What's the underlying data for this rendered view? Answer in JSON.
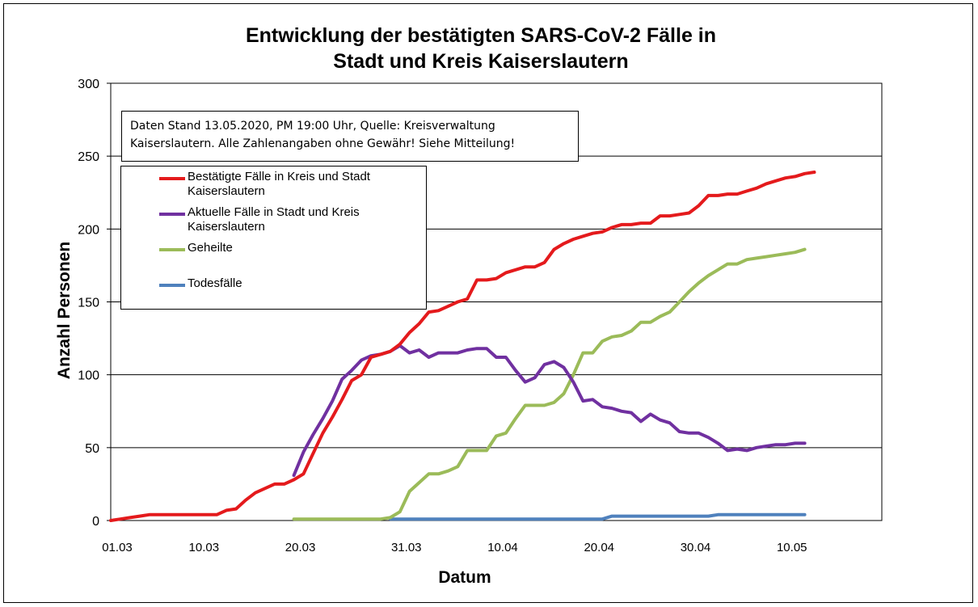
{
  "chart_data": {
    "type": "line",
    "title_line1": "Entwicklung der bestätigten SARS-CoV-2 Fälle in",
    "title_line2": "Stadt und Kreis Kaiserslautern",
    "xlabel": "Datum",
    "ylabel": "Anzahl Personen",
    "ylim": [
      0,
      300
    ],
    "yticks": [
      0,
      50,
      100,
      150,
      200,
      250,
      300
    ],
    "xlim": [
      "2020-03-01",
      "2020-05-20"
    ],
    "xticks": [
      {
        "date": "2020-03-01",
        "label": "01.03"
      },
      {
        "date": "2020-03-10",
        "label": "10.03"
      },
      {
        "date": "2020-03-20",
        "label": "20.03"
      },
      {
        "date": "2020-03-31",
        "label": "31.03"
      },
      {
        "date": "2020-04-10",
        "label": "10.04"
      },
      {
        "date": "2020-04-20",
        "label": "20.04"
      },
      {
        "date": "2020-04-30",
        "label": "30.04"
      },
      {
        "date": "2020-05-10",
        "label": "10.05"
      }
    ],
    "grid": "horizontal",
    "annotation": "Daten Stand 13.05.2020, PM 19:00 Uhr, Quelle: Kreisverwaltung Kaiserslautern. Alle Zahlenangaben ohne Gewähr! Siehe Mitteilung!",
    "legend_position": "top-left",
    "series": [
      {
        "name": "Bestätigte Fälle in Kreis und Stadt Kaiserslautern",
        "color": "#e41a1c",
        "start_date": "2020-03-01",
        "values": [
          0,
          1,
          2,
          3,
          4,
          4,
          4,
          4,
          4,
          4,
          4,
          4,
          7,
          8,
          14,
          19,
          22,
          25,
          25,
          28,
          32,
          46,
          60,
          71,
          83,
          96,
          100,
          112,
          114,
          116,
          121,
          129,
          135,
          143,
          144,
          147,
          150,
          152,
          165,
          165,
          166,
          170,
          172,
          174,
          174,
          177,
          186,
          190,
          193,
          195,
          197,
          198,
          201,
          203,
          203,
          204,
          204,
          209,
          209,
          210,
          211,
          216,
          223,
          223,
          224,
          224,
          226,
          228,
          231,
          233,
          235,
          236,
          238,
          239
        ]
      },
      {
        "name": "Aktuelle Fälle in Stadt und Kreis Kaiserslautern",
        "color": "#7030a0",
        "start_date": "2020-03-20",
        "values": [
          31,
          47,
          59,
          70,
          82,
          97,
          103,
          110,
          113,
          114,
          116,
          120,
          115,
          117,
          112,
          115,
          115,
          115,
          117,
          118,
          118,
          112,
          112,
          103,
          95,
          98,
          107,
          109,
          105,
          95,
          82,
          83,
          78,
          77,
          75,
          74,
          68,
          73,
          69,
          67,
          61,
          60,
          60,
          57,
          53,
          48,
          49,
          48,
          50,
          51,
          52,
          52,
          53,
          53
        ]
      },
      {
        "name": "Geheilte",
        "color": "#9bbb59",
        "start_date": "2020-03-20",
        "values": [
          1,
          1,
          1,
          1,
          1,
          1,
          1,
          1,
          1,
          1,
          2,
          6,
          20,
          26,
          32,
          32,
          34,
          37,
          48,
          48,
          48,
          58,
          60,
          70,
          79,
          79,
          79,
          81,
          87,
          100,
          115,
          115,
          123,
          126,
          127,
          130,
          136,
          136,
          140,
          143,
          150,
          157,
          163,
          168,
          172,
          176,
          176,
          179,
          180,
          181,
          182,
          183,
          184,
          186
        ]
      },
      {
        "name": "Todesfälle",
        "color": "#4f81bd",
        "start_date": "2020-03-30",
        "values": [
          1,
          1,
          1,
          1,
          1,
          1,
          1,
          1,
          1,
          1,
          1,
          1,
          1,
          1,
          1,
          1,
          1,
          1,
          1,
          1,
          1,
          1,
          1,
          3,
          3,
          3,
          3,
          3,
          3,
          3,
          3,
          3,
          3,
          3,
          4,
          4,
          4,
          4,
          4,
          4,
          4,
          4,
          4,
          4
        ]
      }
    ]
  }
}
